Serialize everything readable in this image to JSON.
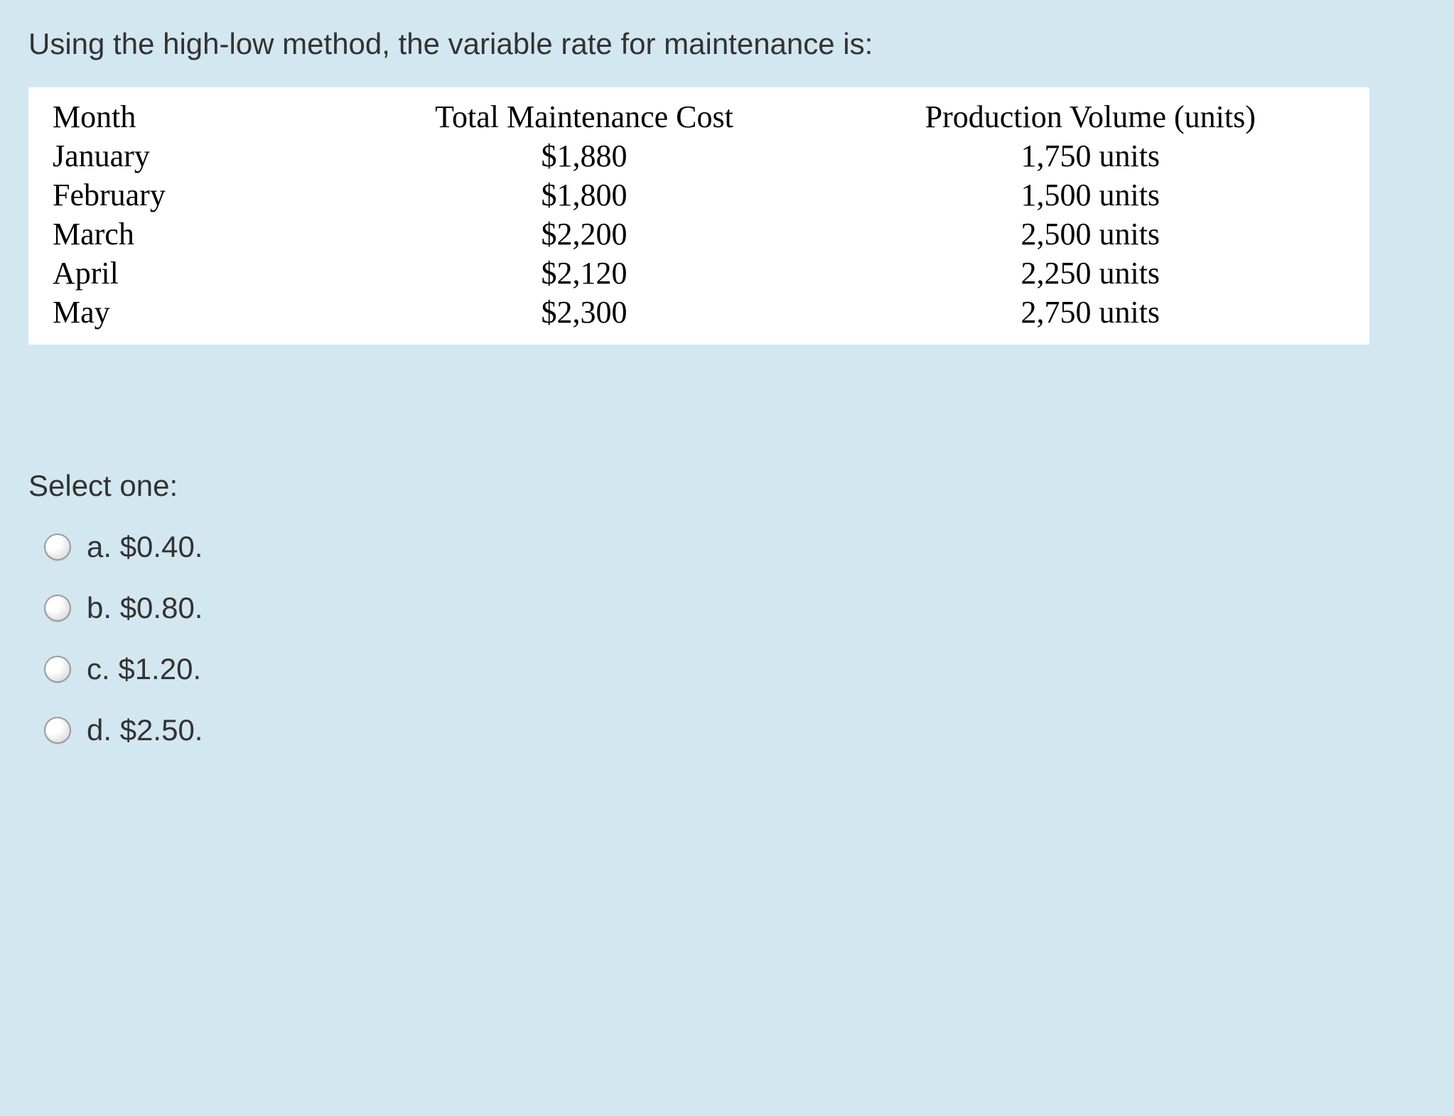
{
  "colors": {
    "page_background": "#d3e7f0",
    "table_background": "#ffffff",
    "body_text": "#333333",
    "table_text": "#000000"
  },
  "typography": {
    "body_font": "Verdana, Geneva, sans-serif",
    "table_font": "\"Times New Roman\", Times, serif",
    "question_fontsize_pt": 32,
    "table_fontsize_pt": 33,
    "option_fontsize_pt": 32
  },
  "question": {
    "text": "Using the high-low method, the variable rate for maintenance is:"
  },
  "table": {
    "type": "table",
    "background_color": "#ffffff",
    "columns": [
      {
        "key": "month",
        "label": "Month",
        "align": "left",
        "width_pct": 22
      },
      {
        "key": "cost",
        "label": "Total Maintenance Cost",
        "align": "center",
        "width_pct": 38
      },
      {
        "key": "volume",
        "label": "Production Volume (units)",
        "align": "center",
        "width_pct": 40
      }
    ],
    "rows": [
      {
        "month": "January",
        "cost": "$1,880",
        "volume": "1,750 units"
      },
      {
        "month": "February",
        "cost": "$1,800",
        "volume": "1,500 units"
      },
      {
        "month": "March",
        "cost": "$2,200",
        "volume": "2,500 units"
      },
      {
        "month": "April",
        "cost": "$2,120",
        "volume": "2,250 units"
      },
      {
        "month": "May",
        "cost": "$2,300",
        "volume": "2,750 units"
      }
    ]
  },
  "answers": {
    "prompt": "Select one:",
    "options": [
      {
        "letter": "a.",
        "text": "$0.40.",
        "selected": false
      },
      {
        "letter": "b.",
        "text": "$0.80.",
        "selected": false
      },
      {
        "letter": "c.",
        "text": "$1.20.",
        "selected": false
      },
      {
        "letter": "d.",
        "text": "$2.50.",
        "selected": false
      }
    ]
  }
}
